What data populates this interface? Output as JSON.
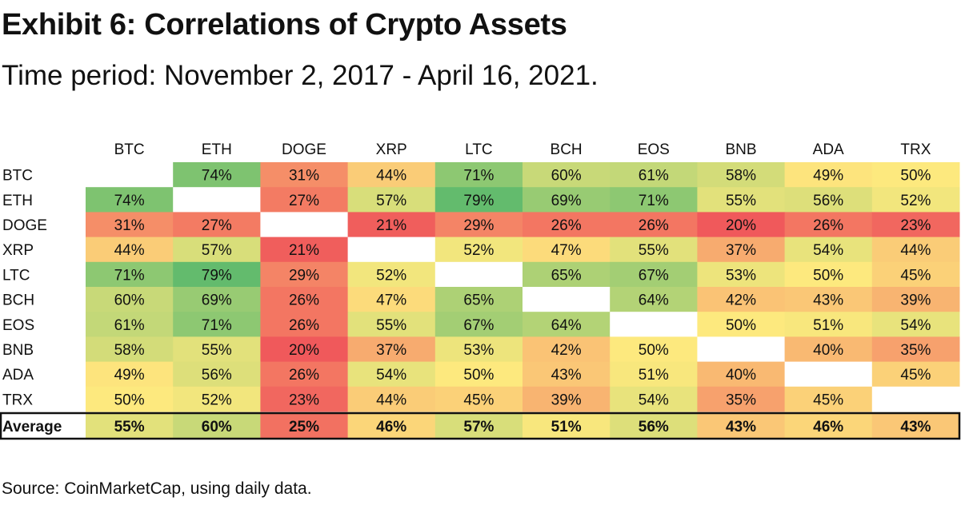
{
  "header": {
    "title": "Exhibit 6: Correlations of Crypto Assets",
    "subtitle": "Time period: November 2, 2017 - April 16, 2021."
  },
  "footer": {
    "source": "Source: CoinMarketCap, using daily data."
  },
  "colors": {
    "low": "#f0595b",
    "mid": "#fde97e",
    "high": "#63bb6d",
    "border": "#111111"
  },
  "chart_data": {
    "type": "heatmap",
    "title": "Exhibit 6: Correlations of Crypto Assets",
    "columns": [
      "BTC",
      "ETH",
      "DOGE",
      "XRP",
      "LTC",
      "BCH",
      "EOS",
      "BNB",
      "ADA",
      "TRX"
    ],
    "rows": [
      "BTC",
      "ETH",
      "DOGE",
      "XRP",
      "LTC",
      "BCH",
      "EOS",
      "BNB",
      "ADA",
      "TRX"
    ],
    "values": [
      [
        null,
        74,
        31,
        44,
        71,
        60,
        61,
        58,
        49,
        50
      ],
      [
        74,
        null,
        27,
        57,
        79,
        69,
        71,
        55,
        56,
        52
      ],
      [
        31,
        27,
        null,
        21,
        29,
        26,
        26,
        20,
        26,
        23
      ],
      [
        44,
        57,
        21,
        null,
        52,
        47,
        55,
        37,
        54,
        44
      ],
      [
        71,
        79,
        29,
        52,
        null,
        65,
        67,
        53,
        50,
        45
      ],
      [
        60,
        69,
        26,
        47,
        65,
        null,
        64,
        42,
        43,
        39
      ],
      [
        61,
        71,
        26,
        55,
        67,
        64,
        null,
        50,
        51,
        54
      ],
      [
        58,
        55,
        20,
        37,
        53,
        42,
        50,
        null,
        40,
        35
      ],
      [
        49,
        56,
        26,
        54,
        50,
        43,
        51,
        40,
        null,
        45
      ],
      [
        50,
        52,
        23,
        44,
        45,
        39,
        54,
        35,
        45,
        null
      ]
    ],
    "average_label": "Average",
    "average": [
      55,
      60,
      25,
      46,
      57,
      51,
      56,
      43,
      46,
      43
    ],
    "value_suffix": "%",
    "color_scale": [
      20,
      50,
      79
    ]
  }
}
